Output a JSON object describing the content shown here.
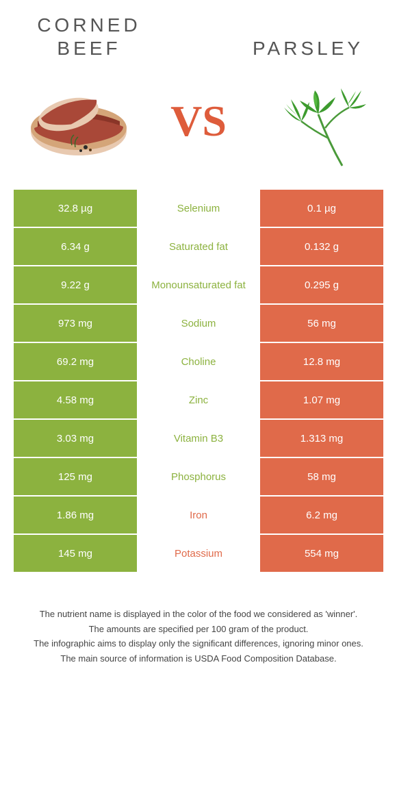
{
  "header": {
    "left_title": "Corned Beef",
    "right_title": "Parsley",
    "vs_label": "VS"
  },
  "colors": {
    "left": "#8cb23f",
    "right": "#e06a4a",
    "vs": "#de5c3b"
  },
  "nutrients": [
    {
      "name": "Selenium",
      "left": "32.8 µg",
      "right": "0.1 µg",
      "winner": "left"
    },
    {
      "name": "Saturated fat",
      "left": "6.34 g",
      "right": "0.132 g",
      "winner": "left"
    },
    {
      "name": "Monounsaturated fat",
      "left": "9.22 g",
      "right": "0.295 g",
      "winner": "left"
    },
    {
      "name": "Sodium",
      "left": "973 mg",
      "right": "56 mg",
      "winner": "left"
    },
    {
      "name": "Choline",
      "left": "69.2 mg",
      "right": "12.8 mg",
      "winner": "left"
    },
    {
      "name": "Zinc",
      "left": "4.58 mg",
      "right": "1.07 mg",
      "winner": "left"
    },
    {
      "name": "Vitamin B3",
      "left": "3.03 mg",
      "right": "1.313 mg",
      "winner": "left"
    },
    {
      "name": "Phosphorus",
      "left": "125 mg",
      "right": "58 mg",
      "winner": "left"
    },
    {
      "name": "Iron",
      "left": "1.86 mg",
      "right": "6.2 mg",
      "winner": "right"
    },
    {
      "name": "Potassium",
      "left": "145 mg",
      "right": "554 mg",
      "winner": "right"
    }
  ],
  "footer": {
    "line1": "The nutrient name is displayed in the color of the food we considered as 'winner'.",
    "line2": "The amounts are specified per 100 gram of the product.",
    "line3": "The infographic aims to display only the significant differences, ignoring minor ones.",
    "line4": "The main source of information is USDA Food Composition Database."
  }
}
